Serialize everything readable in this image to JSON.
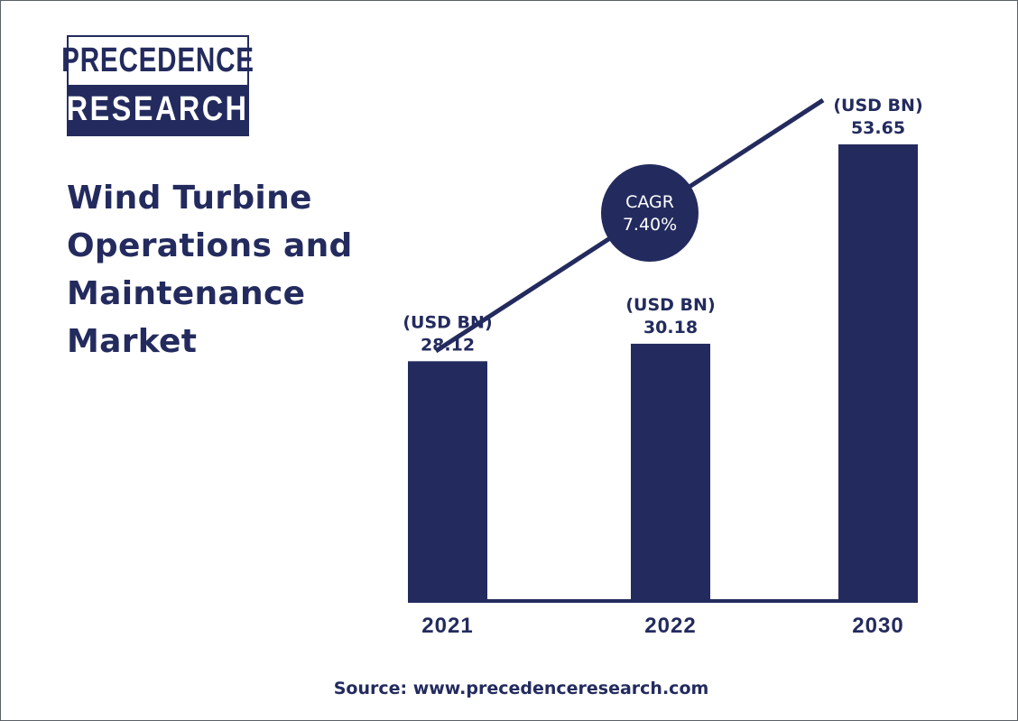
{
  "logo": {
    "line1": "PRECEDENCE",
    "line2": "RESEARCH"
  },
  "title_lines": [
    "Wind Turbine",
    "Operations and",
    "Maintenance",
    "Market"
  ],
  "cagr": {
    "label": "CAGR",
    "value": "7.40%"
  },
  "source": "Source: www.precedenceresearch.com",
  "colors": {
    "bar": "#232b5e",
    "text": "#232b5e",
    "axis": "#232b5e",
    "background": "#ffffff"
  },
  "chart_data": {
    "type": "bar",
    "title": "Wind Turbine Operations and Maintenance Market",
    "categories": [
      "2021",
      "2022",
      "2030"
    ],
    "values": [
      28.12,
      30.18,
      53.65
    ],
    "value_labels": [
      "28.12",
      "30.18",
      "53.65"
    ],
    "unit_label": "(USD BN)",
    "xlabel": "",
    "ylabel": "",
    "grid": false
  }
}
